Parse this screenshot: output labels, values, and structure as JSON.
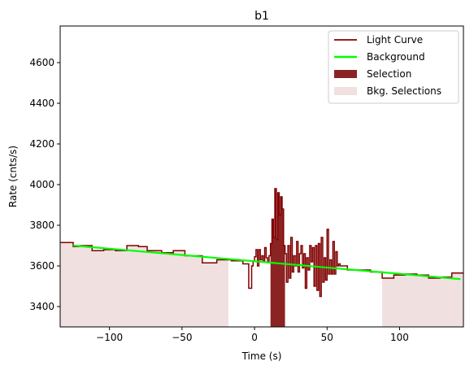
{
  "chart_data": {
    "type": "line",
    "title": "b1",
    "xlabel": "Time (s)",
    "ylabel": "Rate (cnts/s)",
    "xlim": [
      -134,
      144
    ],
    "ylim": [
      3300,
      4780
    ],
    "xticks": [
      -100,
      -50,
      0,
      50,
      100
    ],
    "yticks": [
      3400,
      3600,
      3800,
      4000,
      4200,
      4400,
      4600
    ],
    "grid": false,
    "legend_placement": "top-right",
    "colors": {
      "light_curve": "#800000",
      "background": "#00ff00",
      "selection": "#8b2323",
      "bkg_selection": "#f0e0e0"
    },
    "legend": [
      {
        "label": "Light Curve",
        "kind": "line",
        "color": "#800000"
      },
      {
        "label": "Background",
        "kind": "line",
        "color": "#00ff00"
      },
      {
        "label": "Selection",
        "kind": "patch",
        "color": "#8b2323"
      },
      {
        "label": "Bkg. Selections",
        "kind": "patch",
        "color": "#f0e0e0"
      }
    ],
    "bkg_selections": [
      [
        -134,
        -18
      ],
      [
        88,
        144
      ]
    ],
    "selection": [
      11,
      21
    ],
    "background_fit": {
      "x": [
        -125,
        142
      ],
      "y": [
        3700,
        3535
      ]
    },
    "light_curve": {
      "x": [
        -134,
        -125,
        -120,
        -112,
        -104,
        -96,
        -88,
        -80,
        -74,
        -64,
        -56,
        -48,
        -36,
        -26,
        -16,
        -8,
        -4,
        -2,
        -1,
        0,
        1,
        2,
        3,
        4,
        5,
        6,
        7,
        8,
        9,
        10,
        11,
        12,
        13,
        14,
        15,
        16,
        17,
        18,
        19,
        20,
        21,
        22,
        23,
        24,
        25,
        26,
        27,
        28,
        29,
        30,
        31,
        32,
        33,
        34,
        35,
        36,
        37,
        38,
        39,
        40,
        41,
        42,
        43,
        44,
        45,
        46,
        47,
        48,
        49,
        50,
        51,
        52,
        53,
        54,
        55,
        56,
        57,
        58,
        59,
        60,
        64,
        72,
        80,
        88,
        96,
        104,
        112,
        120,
        128,
        136,
        144
      ],
      "y": [
        3715,
        3695,
        3700,
        3675,
        3680,
        3675,
        3700,
        3695,
        3675,
        3665,
        3675,
        3650,
        3615,
        3630,
        3625,
        3610,
        3490,
        3600,
        3625,
        3645,
        3680,
        3600,
        3680,
        3630,
        3650,
        3620,
        3690,
        3640,
        3620,
        3650,
        3710,
        3830,
        3740,
        3980,
        3730,
        3960,
        3850,
        3940,
        3880,
        3700,
        3660,
        3520,
        3700,
        3540,
        3740,
        3570,
        3650,
        3600,
        3720,
        3570,
        3660,
        3700,
        3590,
        3660,
        3490,
        3640,
        3580,
        3700,
        3620,
        3690,
        3500,
        3700,
        3480,
        3710,
        3450,
        3740,
        3520,
        3640,
        3530,
        3780,
        3560,
        3630,
        3560,
        3720,
        3560,
        3670,
        3600,
        3610,
        3600,
        3600,
        3580,
        3580,
        3570,
        3540,
        3555,
        3560,
        3555,
        3540,
        3545,
        3565,
        3565
      ]
    }
  }
}
